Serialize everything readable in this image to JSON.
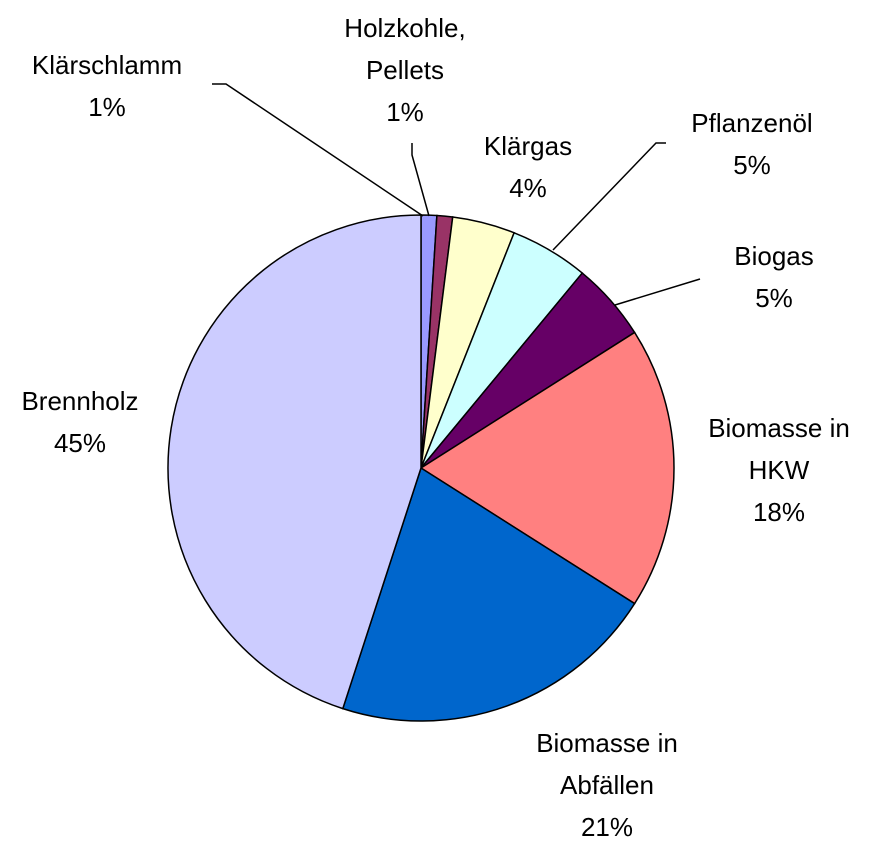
{
  "chart_data": {
    "type": "pie",
    "categories": [
      [
        "Klärschlamm"
      ],
      [
        "Holzkohle,",
        "Pellets"
      ],
      [
        "Klärgas"
      ],
      [
        "Pflanzenöl"
      ],
      [
        "Biogas"
      ],
      [
        "Biomasse in",
        "HKW"
      ],
      [
        "Biomasse in",
        "Abfällen"
      ],
      [
        "Brennholz"
      ]
    ],
    "values": [
      1,
      1,
      4,
      5,
      5,
      18,
      21,
      45
    ],
    "value_labels": [
      "1%",
      "1%",
      "4%",
      "5%",
      "5%",
      "18%",
      "21%",
      "45%"
    ],
    "colors": [
      "#9999ff",
      "#993366",
      "#ffffcc",
      "#ccffff",
      "#660066",
      "#ff8080",
      "#0066cc",
      "#ccccff"
    ]
  }
}
